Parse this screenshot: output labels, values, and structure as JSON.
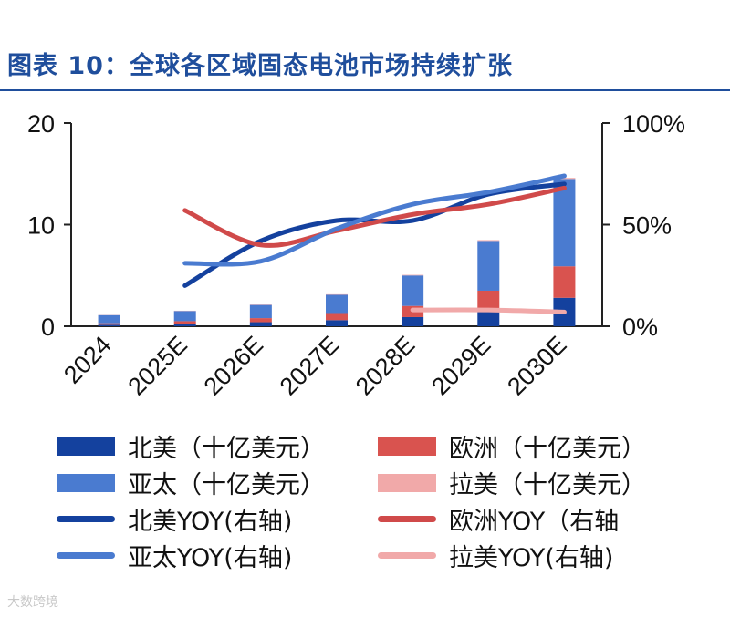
{
  "title": "图表 10：全球各区域固态电池市场持续扩张",
  "watermark": "大数跨境",
  "chart_data": {
    "type": "bar",
    "stacked": true,
    "categories": [
      "2024",
      "2025E",
      "2026E",
      "2027E",
      "2028E",
      "2029E",
      "2030E"
    ],
    "y_left": {
      "min": 0,
      "max": 20,
      "ticks": [
        "0",
        "10",
        "20"
      ]
    },
    "y_right": {
      "min": 0,
      "max": 100,
      "ticks": [
        "0%",
        "50%",
        "100%"
      ]
    },
    "series": [
      {
        "name": "北美（十亿美元）",
        "kind": "bar",
        "color": "#14419e",
        "values": [
          0.15,
          0.25,
          0.4,
          0.6,
          0.9,
          1.5,
          2.8
        ]
      },
      {
        "name": "欧洲（十亿美元）",
        "kind": "bar",
        "color": "#d9534f",
        "values": [
          0.15,
          0.25,
          0.4,
          0.7,
          1.1,
          2.0,
          3.1
        ]
      },
      {
        "name": "亚太（十亿美元）",
        "kind": "bar",
        "color": "#4a7bd0",
        "values": [
          0.8,
          1.0,
          1.3,
          1.8,
          3.0,
          4.9,
          8.6
        ]
      },
      {
        "name": "拉美（十亿美元）",
        "kind": "bar",
        "color": "#f1a9a9",
        "values": [
          0.02,
          0.03,
          0.04,
          0.05,
          0.06,
          0.08,
          0.1
        ]
      },
      {
        "name": "北美YOY(右轴)",
        "kind": "line",
        "color": "#14419e",
        "values": [
          null,
          20,
          42,
          52,
          52,
          65,
          70
        ]
      },
      {
        "name": "欧洲YOY（右轴",
        "kind": "line",
        "color": "#d04a4a",
        "values": [
          null,
          57,
          40,
          47,
          55,
          60,
          68
        ]
      },
      {
        "name": "亚太YOY(右轴)",
        "kind": "line",
        "color": "#4a7bd0",
        "values": [
          null,
          31,
          32,
          48,
          60,
          66,
          74
        ]
      },
      {
        "name": "拉美YOY(右轴)",
        "kind": "line",
        "color": "#f1a9a9",
        "values": [
          null,
          null,
          null,
          null,
          8,
          8,
          7
        ]
      }
    ],
    "legend": [
      {
        "label": "北美（十亿美元）",
        "kind": "bar",
        "color": "#14419e"
      },
      {
        "label": "欧洲（十亿美元）",
        "kind": "bar",
        "color": "#d9534f"
      },
      {
        "label": "亚太（十亿美元）",
        "kind": "bar",
        "color": "#4a7bd0"
      },
      {
        "label": "拉美（十亿美元）",
        "kind": "bar",
        "color": "#f1a9a9"
      },
      {
        "label": "北美YOY(右轴)",
        "kind": "line",
        "color": "#14419e"
      },
      {
        "label": "欧洲YOY（右轴",
        "kind": "line",
        "color": "#d04a4a"
      },
      {
        "label": "亚太YOY(右轴)",
        "kind": "line",
        "color": "#4a7bd0"
      },
      {
        "label": "拉美YOY(右轴)",
        "kind": "line",
        "color": "#f1a9a9"
      }
    ],
    "legend_position": "bottom"
  }
}
